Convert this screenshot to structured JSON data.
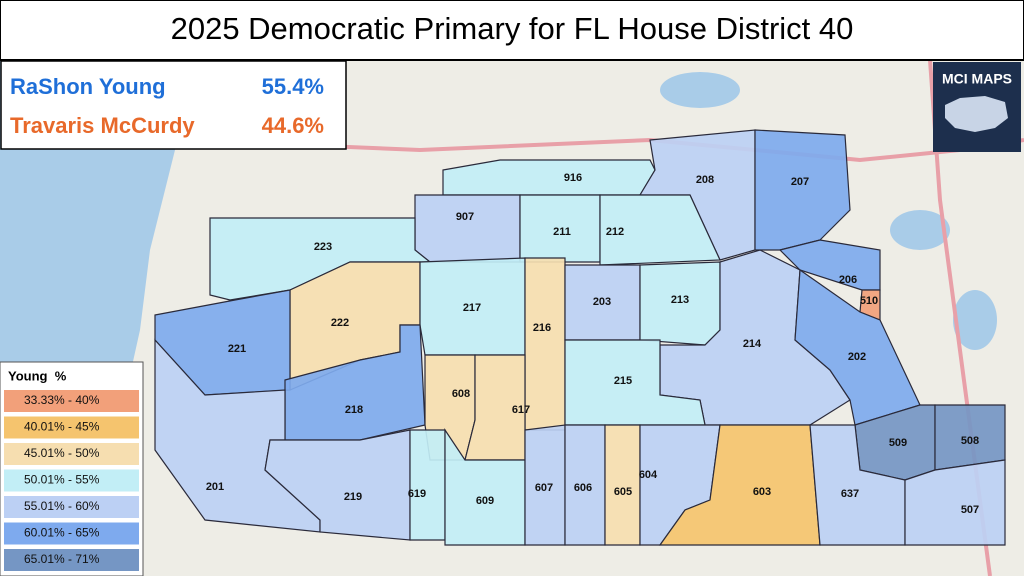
{
  "header": {
    "title": "2025 Democratic Primary for FL House District 40"
  },
  "results": [
    {
      "name": "RaShon Young",
      "share": "55.4%",
      "color": "#1f6fd8"
    },
    {
      "name": "Travaris McCurdy",
      "share": "44.6%",
      "color": "#e8692a"
    }
  ],
  "logo": {
    "title": "MCI MAPS"
  },
  "legend": {
    "title": "Young  %",
    "items": [
      {
        "label": "33.33% - 40%",
        "color": "#f2a07a"
      },
      {
        "label": "40.01% - 45%",
        "color": "#f5c46e"
      },
      {
        "label": "45.01% - 50%",
        "color": "#f6deb0"
      },
      {
        "label": "50.01% - 55%",
        "color": "#c2eef6"
      },
      {
        "label": "55.01% - 60%",
        "color": "#bcd0f4"
      },
      {
        "label": "60.01% - 65%",
        "color": "#7eaaee"
      },
      {
        "label": "65.01% - 71%",
        "color": "#7596c4"
      }
    ]
  },
  "precincts": [
    {
      "label": "916",
      "color": "#c2eef6"
    },
    {
      "label": "907",
      "color": "#bcd0f4"
    },
    {
      "label": "208",
      "color": "#bcd0f4"
    },
    {
      "label": "207",
      "color": "#7eaaee"
    },
    {
      "label": "223",
      "color": "#c2eef6"
    },
    {
      "label": "211",
      "color": "#c2eef6"
    },
    {
      "label": "212",
      "color": "#c2eef6"
    },
    {
      "label": "206",
      "color": "#7eaaee"
    },
    {
      "label": "510",
      "color": "#f2a07a"
    },
    {
      "label": "222",
      "color": "#f6deb0"
    },
    {
      "label": "217",
      "color": "#c2eef6"
    },
    {
      "label": "216",
      "color": "#f6deb0"
    },
    {
      "label": "203",
      "color": "#bcd0f4"
    },
    {
      "label": "213",
      "color": "#c2eef6"
    },
    {
      "label": "214",
      "color": "#bcd0f4"
    },
    {
      "label": "202",
      "color": "#7eaaee"
    },
    {
      "label": "221",
      "color": "#7eaaee"
    },
    {
      "label": "218",
      "color": "#7eaaee"
    },
    {
      "label": "608",
      "color": "#f6deb0"
    },
    {
      "label": "617",
      "color": "#f6deb0"
    },
    {
      "label": "215",
      "color": "#c2eef6"
    },
    {
      "label": "509",
      "color": "#7596c4"
    },
    {
      "label": "508",
      "color": "#7596c4"
    },
    {
      "label": "201",
      "color": "#bcd0f4"
    },
    {
      "label": "219",
      "color": "#bcd0f4"
    },
    {
      "label": "619",
      "color": "#c2eef6"
    },
    {
      "label": "609",
      "color": "#c2eef6"
    },
    {
      "label": "607",
      "color": "#bcd0f4"
    },
    {
      "label": "606",
      "color": "#bcd0f4"
    },
    {
      "label": "605",
      "color": "#f6deb0"
    },
    {
      "label": "604",
      "color": "#bcd0f4"
    },
    {
      "label": "603",
      "color": "#f5c46e"
    },
    {
      "label": "637",
      "color": "#bcd0f4"
    },
    {
      "label": "507",
      "color": "#bcd0f4"
    }
  ]
}
